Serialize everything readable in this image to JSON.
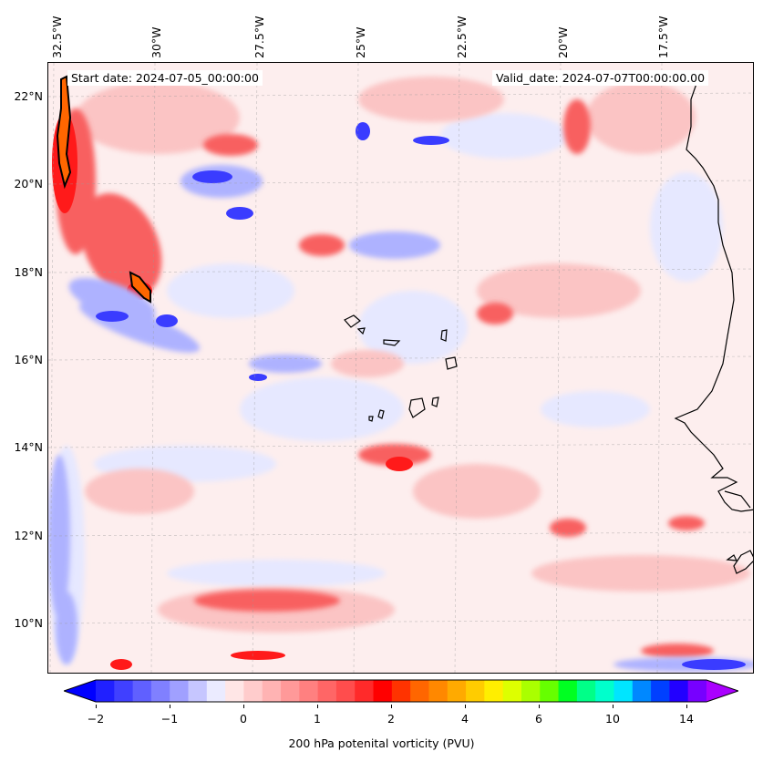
{
  "map": {
    "start_label": "Start date: 2024-07-05_00:00:00",
    "valid_label": "Valid_date: 2024-07-07T00:00:00.00",
    "lon_ticks": [
      "32.5°W",
      "30°W",
      "27.5°W",
      "25°W",
      "22.5°W",
      "20°W",
      "17.5°W"
    ],
    "lat_ticks": [
      "22°N",
      "20°N",
      "18°N",
      "16°N",
      "14°N",
      "12°N",
      "10°N"
    ],
    "colors": {
      "light_red": "#fde3e3",
      "mid_red": "#fbaeae",
      "red": "#f86060",
      "deep_red": "#ff0000",
      "light_blue": "#e6e8ff",
      "mid_blue": "#aeb2ff",
      "blue": "#3a3cff",
      "coast": "#000000"
    }
  },
  "colorbar": {
    "label": "200 hPa potenital vorticity (PVU)",
    "ticks": [
      "−2",
      "−1",
      "0",
      "1",
      "2",
      "4",
      "6",
      "10",
      "14"
    ],
    "colors": [
      "#0000ff",
      "#2020ff",
      "#4040ff",
      "#6060ff",
      "#8080ff",
      "#a0a0ff",
      "#c6c6ff",
      "#ebebff",
      "#ffe6e6",
      "#ffcccc",
      "#ffb3b3",
      "#ff9999",
      "#ff8080",
      "#ff6666",
      "#ff4d4d",
      "#ff2a2a",
      "#ff0000",
      "#ff3300",
      "#ff6600",
      "#ff8800",
      "#ffaa00",
      "#ffcc00",
      "#ffee00",
      "#ddff00",
      "#aaff00",
      "#66ff00",
      "#00ff22",
      "#00ff88",
      "#00ffcc",
      "#00e5ff",
      "#0088ff",
      "#0040ff",
      "#2200ff",
      "#7700ff",
      "#aa00ff"
    ]
  }
}
